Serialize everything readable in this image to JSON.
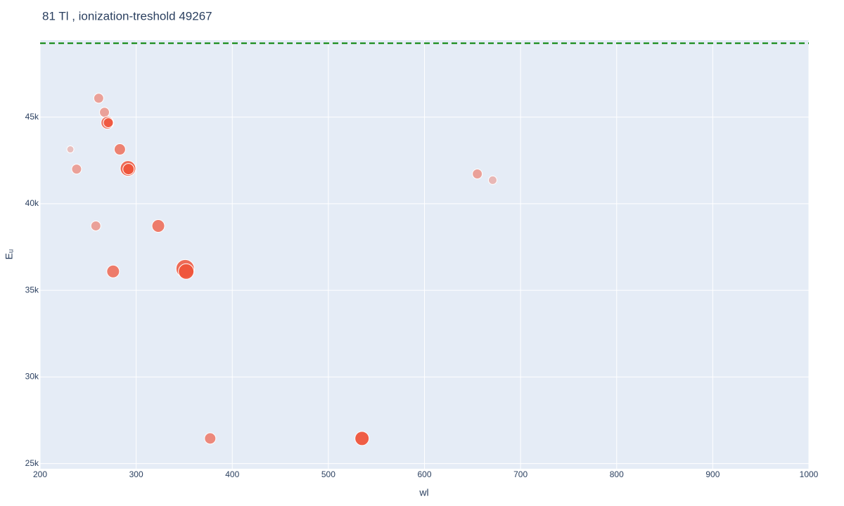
{
  "chart_data": {
    "type": "scatter",
    "title": "81 Tl , ionization-treshold 49267",
    "x_label": "wl",
    "y_label": "Eᵤ",
    "color": "#ef553b",
    "x": [
      231.5,
      238,
      261,
      267,
      270,
      271,
      283,
      291.5,
      292,
      258,
      323,
      276,
      351,
      352,
      377,
      535,
      655,
      671
    ],
    "y": [
      43140,
      42000,
      46090,
      45280,
      44680,
      44680,
      43140,
      42040,
      42000,
      38720,
      38720,
      36090,
      36250,
      36090,
      26450,
      26450,
      41720,
      41360
    ],
    "sizes": [
      10,
      14,
      14,
      14,
      18,
      14,
      16,
      22,
      16,
      14,
      18,
      18,
      26,
      22,
      16,
      20,
      14,
      12
    ],
    "opacity": [
      0.3,
      0.5,
      0.5,
      0.5,
      0.75,
      0.85,
      0.7,
      0.85,
      0.95,
      0.5,
      0.75,
      0.75,
      0.85,
      0.95,
      0.65,
      0.95,
      0.5,
      0.35
    ],
    "threshold": 49267,
    "threshold_color": "#008000",
    "xlim": [
      200,
      1000
    ],
    "ylim": [
      24700,
      49450
    ],
    "xticks": [
      200,
      300,
      400,
      500,
      600,
      700,
      800,
      900,
      1000
    ],
    "yticks": [
      {
        "value": 25000,
        "label": "25k"
      },
      {
        "value": 30000,
        "label": "30k"
      },
      {
        "value": 35000,
        "label": "35k"
      },
      {
        "value": 40000,
        "label": "40k"
      },
      {
        "value": 45000,
        "label": "45k"
      }
    ],
    "grid": true
  }
}
